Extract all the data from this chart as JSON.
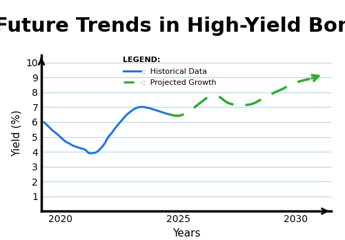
{
  "title": "Future Trends in High-Yield Bonds",
  "xlabel": "Years",
  "ylabel": "Yield (%)",
  "xlim": [
    2019.2,
    2031.5
  ],
  "ylim": [
    0,
    10.5
  ],
  "yticks": [
    1,
    2,
    3,
    4,
    5,
    6,
    7,
    8,
    9,
    10
  ],
  "xticks": [
    2020,
    2025,
    2030
  ],
  "background_color": "#ffffff",
  "grid_color": "#b8d8f0",
  "hist_color": "#2277dd",
  "proj_color": "#33aa33",
  "title_fontsize": 21,
  "axis_label_fontsize": 11,
  "tick_fontsize": 10,
  "legend_fontsize": 8,
  "hist_x": [
    2019.3,
    2019.5,
    2019.7,
    2019.9,
    2020.0,
    2020.1,
    2020.2,
    2020.35,
    2020.5,
    2020.65,
    2020.8,
    2020.9,
    2021.0,
    2021.1,
    2021.15,
    2021.2,
    2021.3,
    2021.4,
    2021.5,
    2021.6,
    2021.7,
    2021.8,
    2021.9,
    2022.0,
    2022.15,
    2022.3,
    2022.45,
    2022.6,
    2022.75,
    2022.9,
    2023.05,
    2023.2,
    2023.35,
    2023.5,
    2023.65,
    2023.8,
    2023.95,
    2024.1,
    2024.25,
    2024.4,
    2024.55
  ],
  "hist_y": [
    6.0,
    5.7,
    5.4,
    5.15,
    5.0,
    4.85,
    4.72,
    4.58,
    4.45,
    4.35,
    4.27,
    4.22,
    4.18,
    4.08,
    4.0,
    3.93,
    3.9,
    3.92,
    3.95,
    4.05,
    4.2,
    4.38,
    4.6,
    4.9,
    5.2,
    5.52,
    5.82,
    6.1,
    6.38,
    6.6,
    6.78,
    6.93,
    7.0,
    7.02,
    6.98,
    6.93,
    6.85,
    6.78,
    6.7,
    6.62,
    6.55
  ],
  "proj_x": [
    2024.55,
    2024.8,
    2025.0,
    2025.2,
    2025.45,
    2025.7,
    2025.95,
    2026.2,
    2026.5,
    2026.8,
    2027.0,
    2027.3,
    2027.6,
    2027.9,
    2028.2,
    2028.5,
    2028.8,
    2029.1,
    2029.4,
    2029.7,
    2030.0,
    2030.3,
    2030.6,
    2030.9,
    2031.15
  ],
  "proj_y": [
    6.55,
    6.45,
    6.42,
    6.5,
    6.7,
    7.0,
    7.3,
    7.6,
    7.75,
    7.65,
    7.4,
    7.2,
    7.12,
    7.15,
    7.25,
    7.5,
    7.75,
    8.0,
    8.2,
    8.45,
    8.65,
    8.8,
    8.9,
    9.0,
    9.2
  ]
}
